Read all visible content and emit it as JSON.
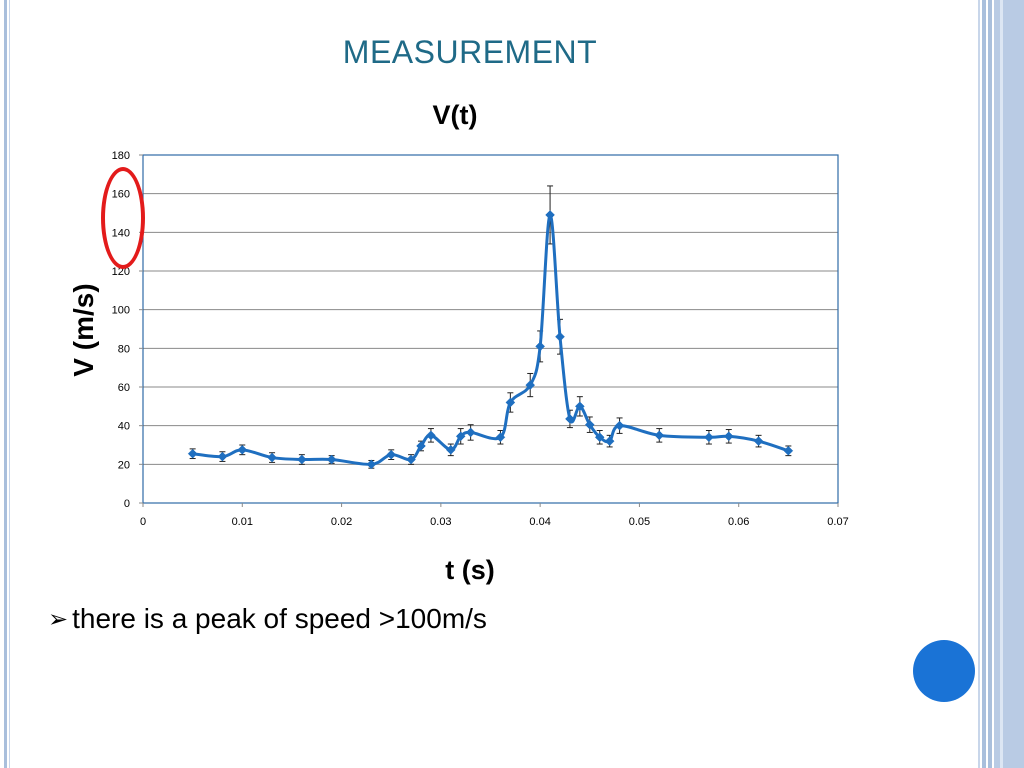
{
  "slide": {
    "title": "MEASUREMENT",
    "bullet_text": "there is a peak of speed >100m/s"
  },
  "chart_data": {
    "type": "line",
    "title": "V(t)",
    "xlabel": "t (s)",
    "ylabel": "V (m/s)",
    "xlim": [
      0,
      0.07
    ],
    "ylim": [
      0,
      180
    ],
    "x_ticks": [
      "0",
      "0.01",
      "0.02",
      "0.03",
      "0.04",
      "0.05",
      "0.06",
      "0.07"
    ],
    "y_ticks": [
      "0",
      "20",
      "40",
      "60",
      "80",
      "100",
      "120",
      "140",
      "160",
      "180"
    ],
    "grid": "horizontal",
    "series": [
      {
        "color": "#1f6fc0",
        "marker": "diamond",
        "x": [
          0.005,
          0.008,
          0.01,
          0.013,
          0.016,
          0.019,
          0.023,
          0.025,
          0.027,
          0.028,
          0.029,
          0.031,
          0.032,
          0.033,
          0.036,
          0.037,
          0.039,
          0.04,
          0.041,
          0.042,
          0.043,
          0.044,
          0.045,
          0.046,
          0.047,
          0.048,
          0.052,
          0.057,
          0.059,
          0.062,
          0.065
        ],
        "y": [
          25.5,
          24,
          27.5,
          23.5,
          22.5,
          22.5,
          20,
          25,
          22.5,
          29.5,
          35,
          27.5,
          34.5,
          36.5,
          34,
          52,
          61,
          81,
          149,
          86,
          43.5,
          50,
          40.5,
          34,
          32,
          40,
          35,
          34,
          34.5,
          32,
          27
        ],
        "error": [
          2.5,
          2.5,
          2.5,
          2.5,
          2.5,
          2,
          2,
          2.5,
          2.5,
          2.5,
          3.5,
          3,
          4,
          4,
          3.5,
          5,
          6,
          8,
          15,
          9,
          4.5,
          5,
          4,
          3.5,
          3,
          4,
          3.5,
          3.5,
          3.5,
          3,
          2.5
        ]
      }
    ]
  },
  "colors": {
    "title": "#1f6a87",
    "series": "#1f6fc0",
    "annotation_ellipse": "#e31b1b",
    "deco_circle": "#1a73d6",
    "frame": "#a9bfdc"
  },
  "icons": {
    "bullet": "arrow-bullet-icon"
  }
}
